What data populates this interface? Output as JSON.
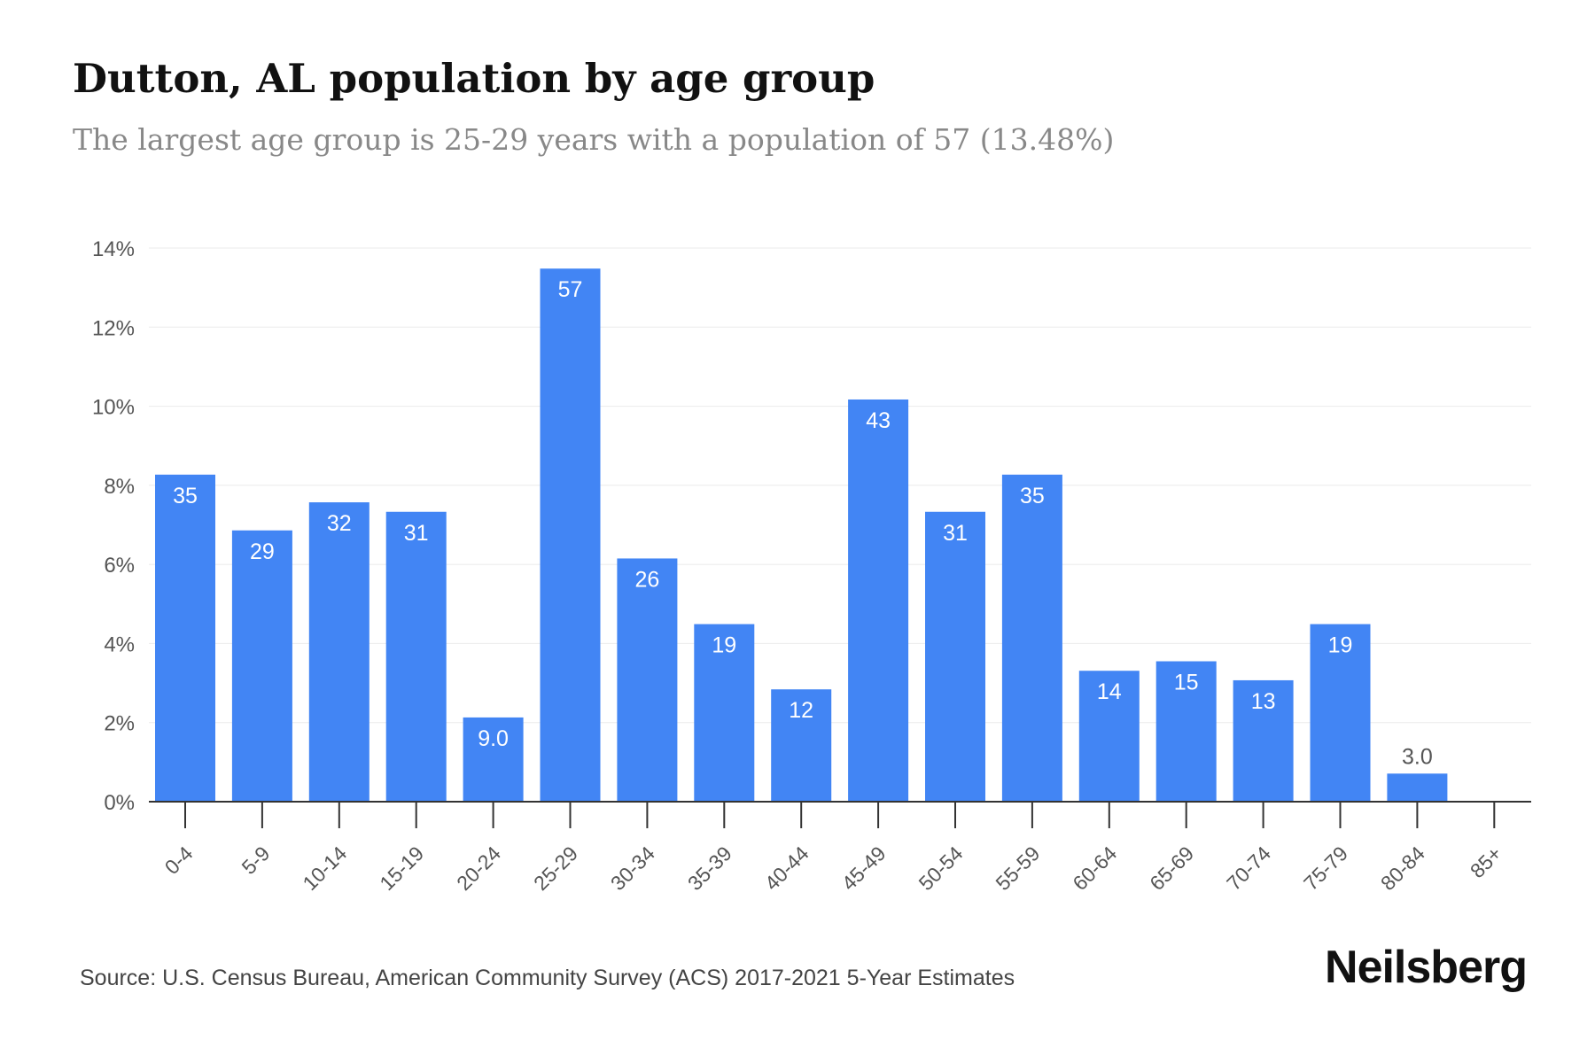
{
  "title": "Dutton, AL population by age group",
  "subtitle": "The largest age group is 25-29 years with a population of 57 (13.48%)",
  "source": "Source: U.S. Census Bureau, American Community Survey (ACS) 2017-2021 5-Year Estimates",
  "brand": "Neilsberg",
  "colors": {
    "bar": "#4285f4",
    "grid": "#ebebeb",
    "axis": "#333333",
    "tick_text": "#555555",
    "label_inside": "#ffffff",
    "label_outside": "#555555"
  },
  "chart_data": {
    "type": "bar",
    "categories": [
      "0-4",
      "5-9",
      "10-14",
      "15-19",
      "20-24",
      "25-29",
      "30-34",
      "35-39",
      "40-44",
      "45-49",
      "50-54",
      "55-59",
      "60-64",
      "65-69",
      "70-74",
      "75-79",
      "80-84",
      "85+"
    ],
    "values": [
      8.27,
      6.86,
      7.57,
      7.33,
      2.13,
      13.48,
      6.15,
      4.49,
      2.84,
      10.17,
      7.33,
      8.27,
      3.31,
      3.55,
      3.07,
      4.49,
      0.71,
      0
    ],
    "data_labels": [
      "35",
      "29",
      "32",
      "31",
      "9.0",
      "57",
      "26",
      "19",
      "12",
      "43",
      "31",
      "35",
      "14",
      "15",
      "13",
      "19",
      "3.0",
      ""
    ],
    "ylim": [
      0,
      14
    ],
    "yticks": [
      0,
      2,
      4,
      6,
      8,
      10,
      12,
      14
    ],
    "ytick_labels": [
      "0%",
      "2%",
      "4%",
      "6%",
      "8%",
      "10%",
      "12%",
      "14%"
    ],
    "xlabel": "",
    "ylabel": "",
    "grid": true,
    "legend": "none"
  }
}
